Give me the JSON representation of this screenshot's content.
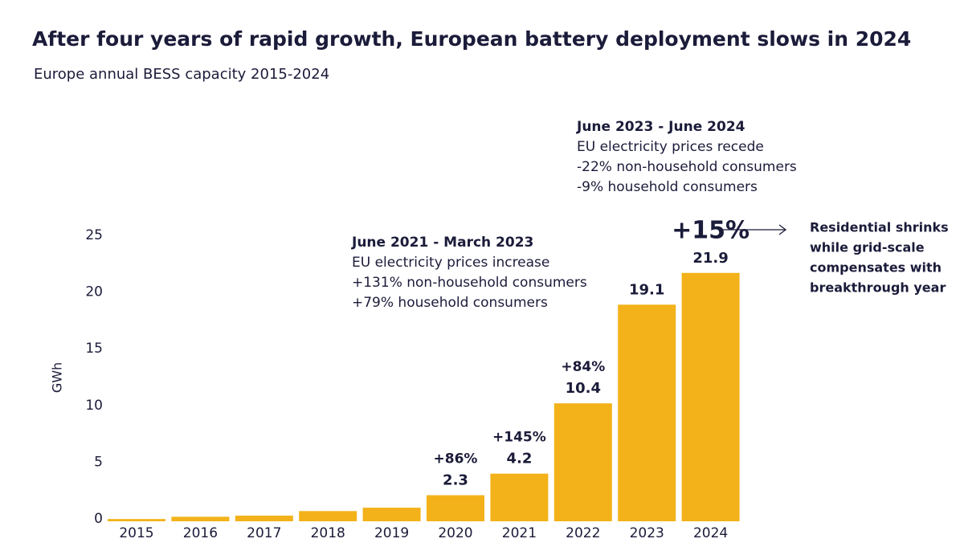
{
  "chart_data": {
    "type": "bar",
    "title": "After four years of rapid growth, European battery deployment slows in 2024",
    "subtitle": "Europe annual BESS capacity 2015-2024",
    "ylabel": "GWh",
    "categories": [
      "2015",
      "2016",
      "2017",
      "2018",
      "2019",
      "2020",
      "2021",
      "2022",
      "2023",
      "2024"
    ],
    "values": [
      0.2,
      0.4,
      0.5,
      0.9,
      1.2,
      2.3,
      4.2,
      10.4,
      19.1,
      21.9
    ],
    "value_labels": [
      null,
      null,
      null,
      null,
      null,
      "2.3",
      "4.2",
      "10.4",
      "19.1",
      "21.9"
    ],
    "growth_labels": [
      null,
      null,
      null,
      null,
      null,
      "+86%",
      "+145%",
      "+84%",
      null,
      "+15%"
    ],
    "color": "#f3b21a",
    "ylim": [
      0,
      25
    ],
    "yticks": [
      0,
      5,
      10,
      15,
      20,
      25
    ],
    "grid": false,
    "annotations": [
      {
        "title": "June 2021 - March 2023",
        "lines": [
          "EU electricity prices increase",
          "+131% non-household consumers",
          "+79% household consumers"
        ]
      },
      {
        "title": "June 2023 - June 2024",
        "lines": [
          "EU electricity prices recede",
          "-22% non-household consumers",
          "-9% household consumers"
        ]
      }
    ],
    "side_note": [
      "Residential shrinks",
      "while grid-scale",
      "compensates with",
      "breakthrough year"
    ]
  }
}
